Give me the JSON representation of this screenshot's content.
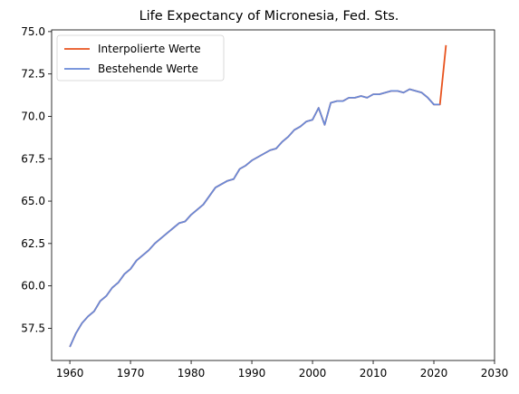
{
  "chart_data": {
    "type": "line",
    "title": "Life Expectancy of Micronesia, Fed. Sts.",
    "xlabel": "",
    "ylabel": "",
    "xlim": [
      1957,
      2030
    ],
    "ylim": [
      55.6,
      75.1
    ],
    "xticks": [
      1960,
      1970,
      1980,
      1990,
      2000,
      2010,
      2020,
      2030
    ],
    "yticks": [
      57.5,
      60.0,
      62.5,
      65.0,
      67.5,
      70.0,
      72.5,
      75.0
    ],
    "xtick_labels": [
      "1960",
      "1970",
      "1980",
      "1990",
      "2000",
      "2010",
      "2020",
      "2030"
    ],
    "ytick_labels": [
      "57.5",
      "60.0",
      "62.5",
      "65.0",
      "67.5",
      "70.0",
      "72.5",
      "75.0"
    ],
    "grid": false,
    "legend_position": "top-left",
    "series": [
      {
        "name": "Interpolierte Werte",
        "color": "#e8531e",
        "x": [
          1960,
          1961,
          1962,
          1963,
          1964,
          1965,
          1966,
          1967,
          1968,
          1969,
          1970,
          1971,
          1972,
          1973,
          1974,
          1975,
          1976,
          1977,
          1978,
          1979,
          1980,
          1981,
          1982,
          1983,
          1984,
          1985,
          1986,
          1987,
          1988,
          1989,
          1990,
          1991,
          1992,
          1993,
          1994,
          1995,
          1996,
          1997,
          1998,
          1999,
          2000,
          2001,
          2002,
          2003,
          2004,
          2005,
          2006,
          2007,
          2008,
          2009,
          2010,
          2011,
          2012,
          2013,
          2014,
          2015,
          2016,
          2017,
          2018,
          2019,
          2020,
          2021,
          2022
        ],
        "values": [
          56.4,
          57.2,
          57.8,
          58.2,
          58.5,
          59.1,
          59.4,
          59.9,
          60.2,
          60.7,
          61.0,
          61.5,
          61.8,
          62.1,
          62.5,
          62.8,
          63.1,
          63.4,
          63.7,
          63.8,
          64.2,
          64.5,
          64.8,
          65.3,
          65.8,
          66.0,
          66.2,
          66.3,
          66.9,
          67.1,
          67.4,
          67.6,
          67.8,
          68.0,
          68.1,
          68.5,
          68.8,
          69.2,
          69.4,
          69.7,
          69.8,
          70.5,
          69.5,
          70.8,
          70.9,
          70.9,
          71.1,
          71.1,
          71.2,
          71.1,
          71.3,
          71.3,
          71.4,
          71.5,
          71.5,
          71.4,
          71.6,
          71.5,
          71.4,
          71.1,
          70.7,
          70.7,
          74.2
        ]
      },
      {
        "name": "Bestehende Werte",
        "color": "#6a8ad8",
        "x": [
          1960,
          1961,
          1962,
          1963,
          1964,
          1965,
          1966,
          1967,
          1968,
          1969,
          1970,
          1971,
          1972,
          1973,
          1974,
          1975,
          1976,
          1977,
          1978,
          1979,
          1980,
          1981,
          1982,
          1983,
          1984,
          1985,
          1986,
          1987,
          1988,
          1989,
          1990,
          1991,
          1992,
          1993,
          1994,
          1995,
          1996,
          1997,
          1998,
          1999,
          2000,
          2001,
          2002,
          2003,
          2004,
          2005,
          2006,
          2007,
          2008,
          2009,
          2010,
          2011,
          2012,
          2013,
          2014,
          2015,
          2016,
          2017,
          2018,
          2019,
          2020,
          2021
        ],
        "values": [
          56.4,
          57.2,
          57.8,
          58.2,
          58.5,
          59.1,
          59.4,
          59.9,
          60.2,
          60.7,
          61.0,
          61.5,
          61.8,
          62.1,
          62.5,
          62.8,
          63.1,
          63.4,
          63.7,
          63.8,
          64.2,
          64.5,
          64.8,
          65.3,
          65.8,
          66.0,
          66.2,
          66.3,
          66.9,
          67.1,
          67.4,
          67.6,
          67.8,
          68.0,
          68.1,
          68.5,
          68.8,
          69.2,
          69.4,
          69.7,
          69.8,
          70.5,
          69.5,
          70.8,
          70.9,
          70.9,
          71.1,
          71.1,
          71.2,
          71.1,
          71.3,
          71.3,
          71.4,
          71.5,
          71.5,
          71.4,
          71.6,
          71.5,
          71.4,
          71.1,
          70.7,
          70.7
        ]
      }
    ]
  }
}
